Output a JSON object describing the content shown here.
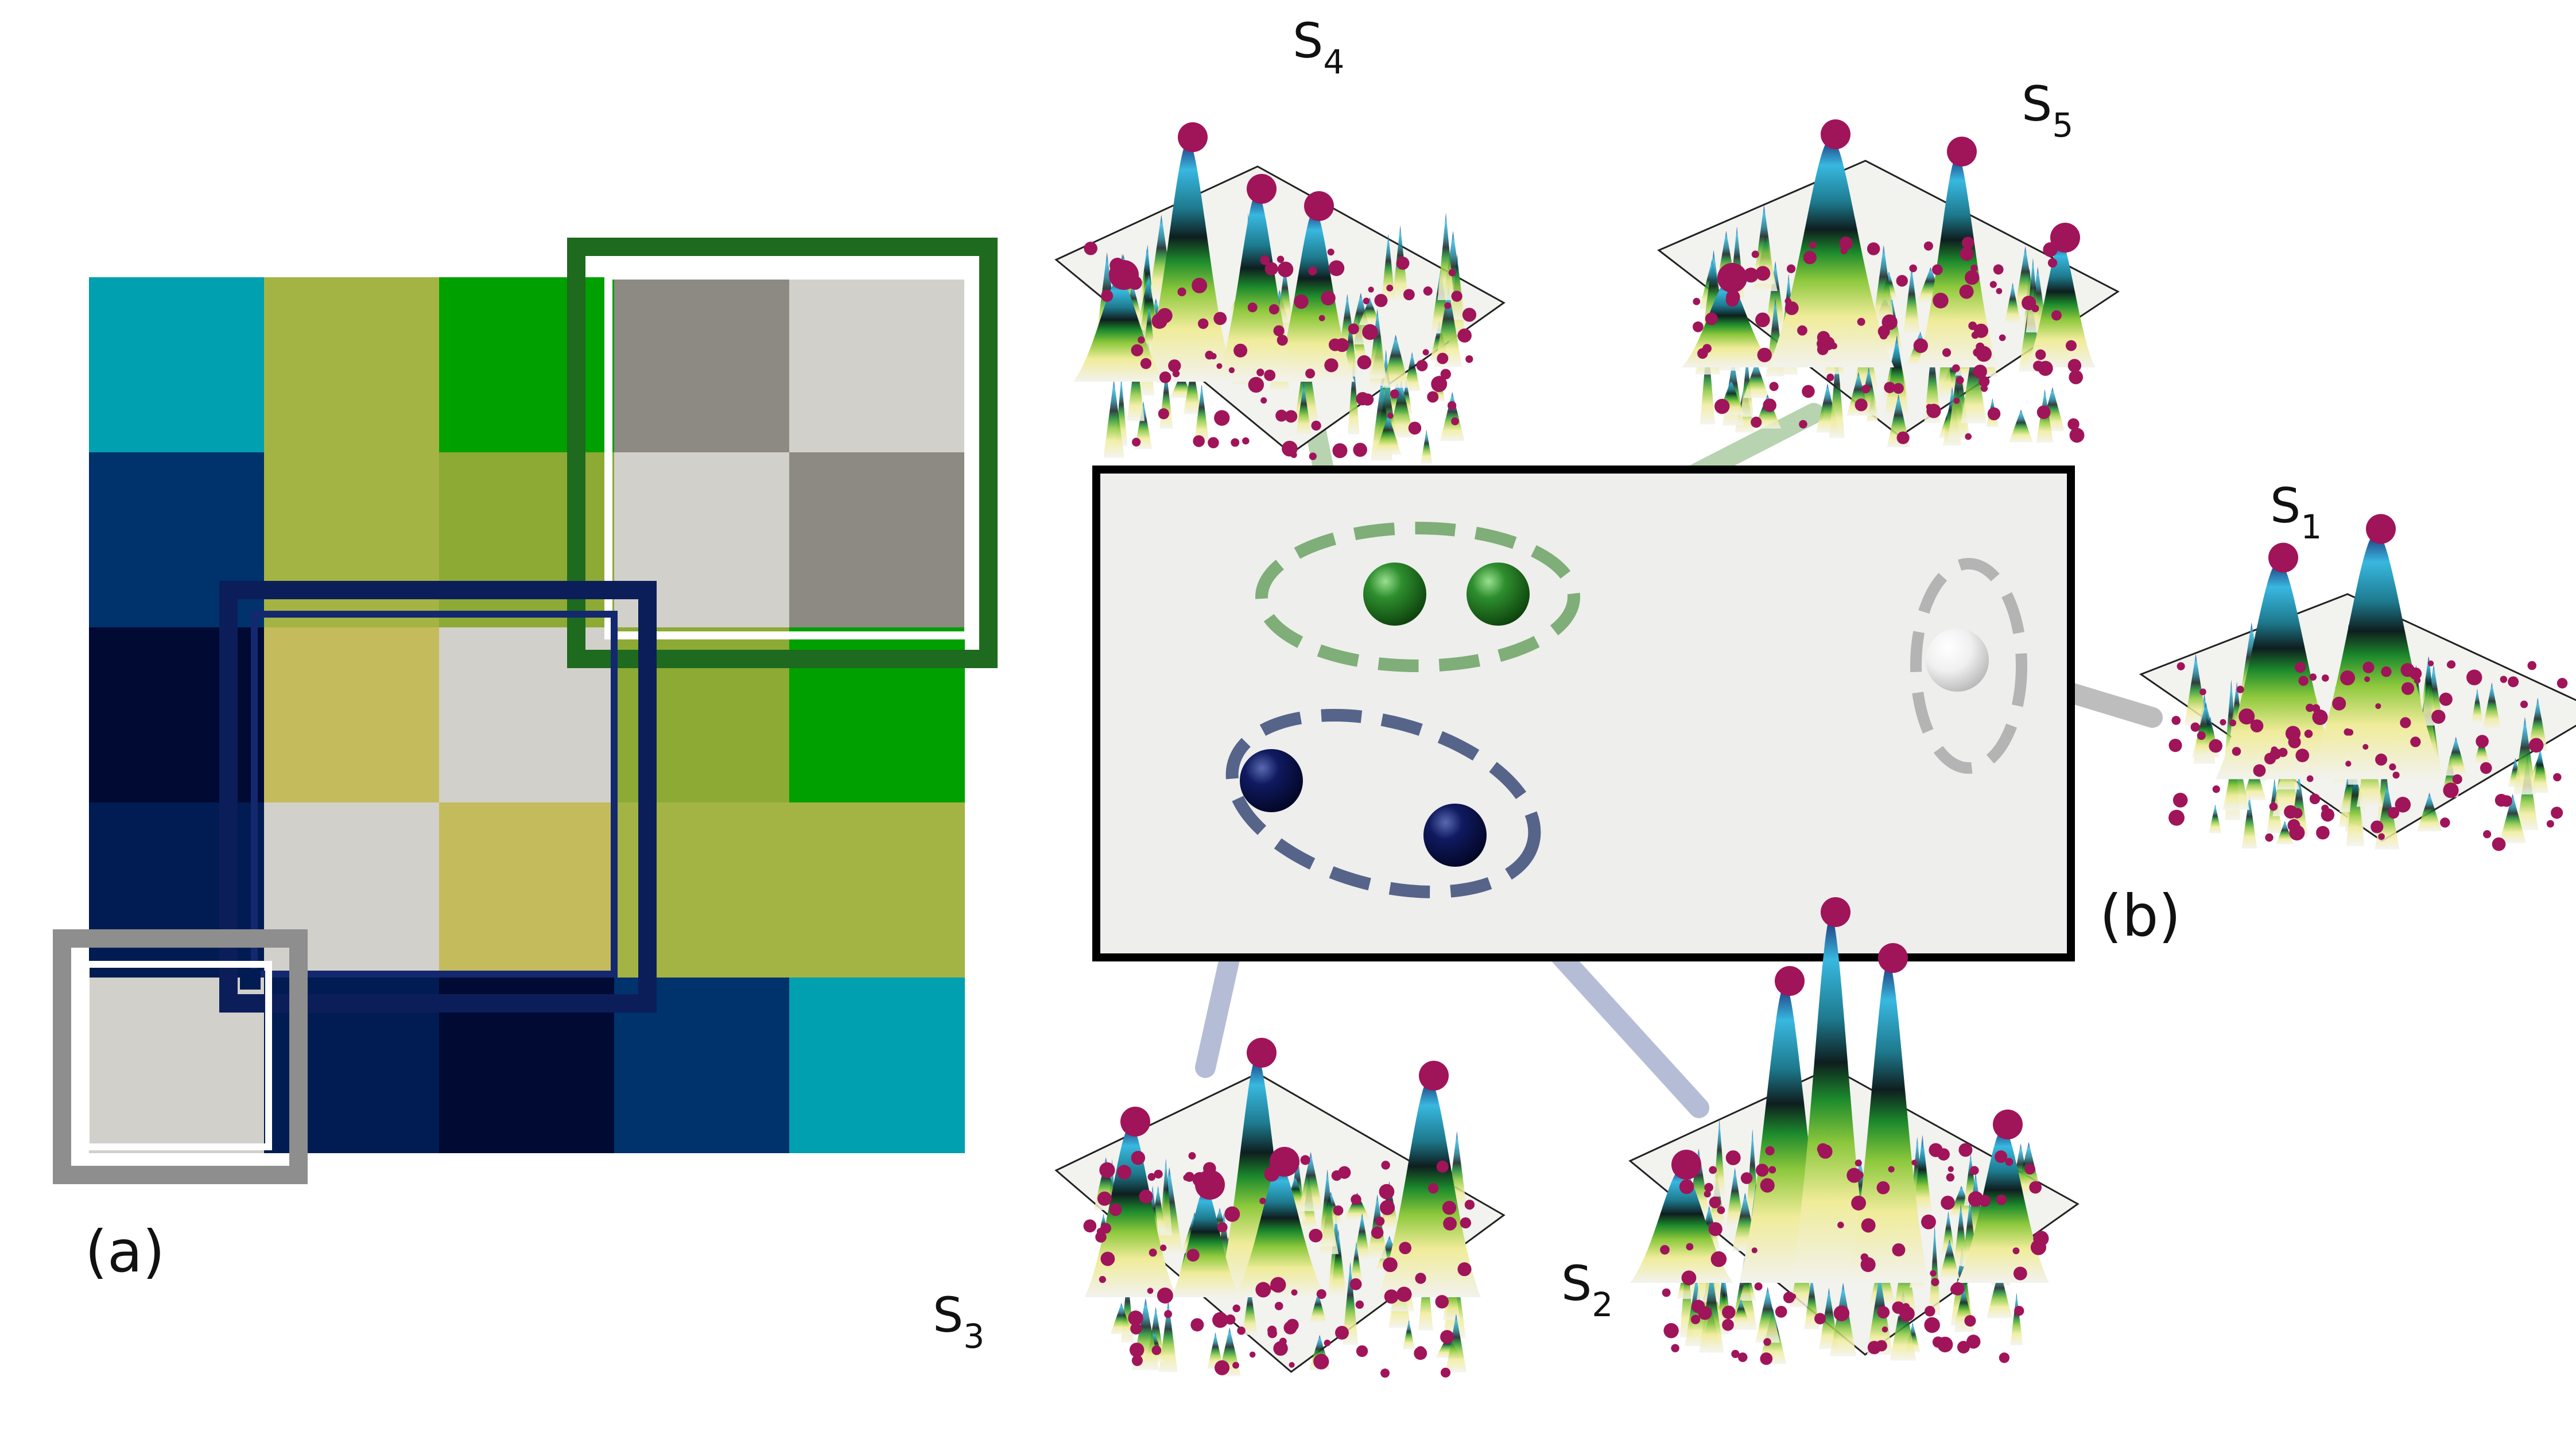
{
  "panel_labels": {
    "a": "(a)",
    "b": "(b)"
  },
  "grid": {
    "rows": 5,
    "cols": 5,
    "cells": [
      [
        "#00A0B0",
        "#A4B444",
        "#00A000",
        "#8C8A82",
        "#D2D0CA"
      ],
      [
        "#00326C",
        "#A4B444",
        "#8CAA34",
        "#D2D0CA",
        "#8C8A82"
      ],
      [
        "#000A32",
        "#C4BC5C",
        "#D2D0CA",
        "#8CAA34",
        "#00A000"
      ],
      [
        "#001C52",
        "#D2D0CA",
        "#C4BC5C",
        "#A4B444",
        "#A4B444"
      ],
      [
        "#D2D0CA",
        "#001C52",
        "#000A32",
        "#00326C",
        "#00A0B0"
      ]
    ],
    "windows": [
      {
        "name": "green",
        "color": "#1E6A1E",
        "inner": "#FFFFFF"
      },
      {
        "name": "navy",
        "color": "#0C1E5A",
        "inner": "#142870"
      },
      {
        "name": "gray",
        "color": "#8E8E8E",
        "inner": "#FFFFFF"
      }
    ]
  },
  "embedding": {
    "box_fill": "#EEEEEC",
    "box_stroke": "#000000",
    "cluster_colors": {
      "green": "#7FAE78",
      "navy": "#56648A",
      "gray": "#B4B4B4"
    },
    "point_colors": {
      "green": "#1F7A1F",
      "navy": "#0E1454",
      "white": "#F4F4F4"
    },
    "link_colors": {
      "green": "#B7D3B0",
      "navy": "#B5BDD6",
      "gray": "#BDBDBD"
    }
  },
  "surfaces": [
    {
      "id": "s1",
      "label": "S",
      "sub": "1"
    },
    {
      "id": "s2",
      "label": "S",
      "sub": "2"
    },
    {
      "id": "s3",
      "label": "S",
      "sub": "3"
    },
    {
      "id": "s4",
      "label": "S",
      "sub": "4"
    },
    {
      "id": "s5",
      "label": "S",
      "sub": "5"
    }
  ],
  "colors": {
    "peak_dot": "#A0145A",
    "surface_base": "#F2F2EE"
  }
}
